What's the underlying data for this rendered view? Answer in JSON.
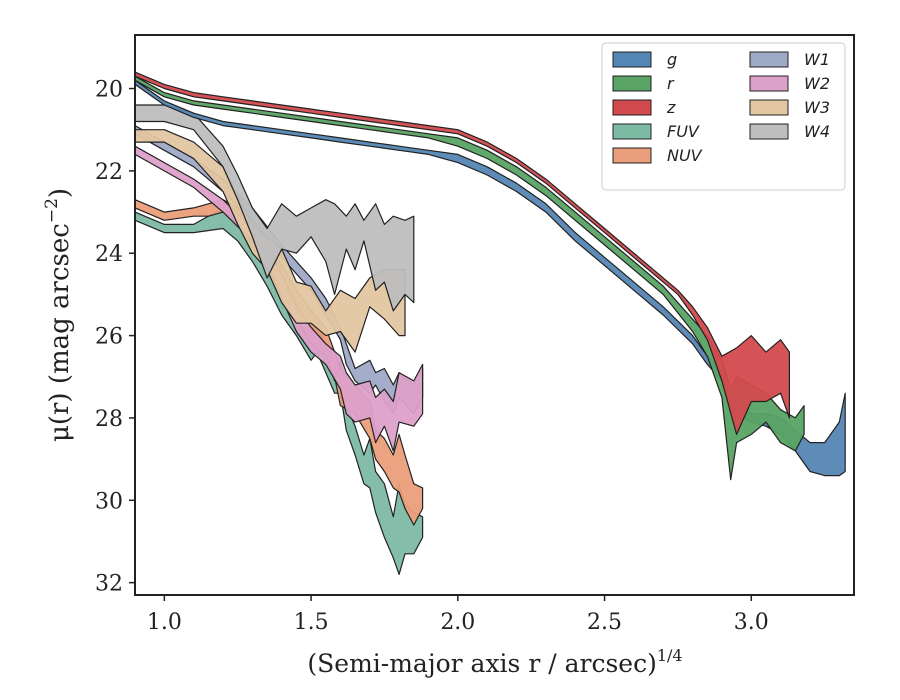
{
  "chart_data": {
    "type": "area",
    "xlabel": "(Semi-major axis r / arcsec)",
    "xlabel_var": "r",
    "xlabel_exponent": "1/4",
    "ylabel": "μ(r) (mag arcsec",
    "ylabel_var": "r",
    "ylabel_exponent": "−2",
    "xlim": [
      0.9,
      3.35
    ],
    "ylim": [
      32.3,
      18.7
    ],
    "y_inverted": true,
    "xticks": [
      1.0,
      1.5,
      2.0,
      2.5,
      3.0
    ],
    "xtick_labels": [
      "1.0",
      "1.5",
      "2.0",
      "2.5",
      "3.0"
    ],
    "yticks": [
      20,
      22,
      24,
      26,
      28,
      30,
      32
    ],
    "ytick_labels": [
      "20",
      "22",
      "24",
      "26",
      "28",
      "30",
      "32"
    ],
    "grid": false,
    "legend": {
      "location": "top-right",
      "columns": 2
    },
    "series": [
      {
        "name": "FUV",
        "color": "#7dbba5",
        "x": [
          0.9,
          1.0,
          1.1,
          1.2,
          1.25,
          1.3,
          1.35,
          1.4,
          1.45,
          1.5,
          1.52,
          1.55,
          1.58,
          1.6,
          1.62,
          1.65,
          1.68,
          1.7,
          1.72,
          1.75,
          1.78,
          1.8,
          1.82,
          1.85,
          1.88
        ],
        "lo": [
          23.0,
          23.3,
          23.3,
          22.9,
          23.3,
          23.7,
          24.3,
          24.9,
          25.5,
          26.0,
          25.6,
          26.3,
          27.1,
          26.6,
          27.7,
          28.2,
          28.9,
          28.5,
          29.3,
          29.6,
          30.4,
          29.6,
          30.1,
          30.3,
          30.4
        ],
        "hi": [
          23.2,
          23.5,
          23.5,
          23.4,
          23.7,
          24.2,
          24.8,
          25.5,
          26.0,
          26.6,
          26.4,
          26.9,
          27.4,
          27.4,
          28.3,
          28.9,
          29.6,
          29.7,
          30.3,
          30.9,
          31.4,
          31.8,
          31.3,
          31.3,
          30.9
        ]
      },
      {
        "name": "NUV",
        "color": "#eb9e7b",
        "x": [
          0.9,
          1.0,
          1.1,
          1.15,
          1.2,
          1.25,
          1.3,
          1.35,
          1.4,
          1.45,
          1.5,
          1.55,
          1.58,
          1.6,
          1.65,
          1.7,
          1.72,
          1.75,
          1.78,
          1.8,
          1.82,
          1.85,
          1.88
        ],
        "lo": [
          22.7,
          23.0,
          22.9,
          22.8,
          22.7,
          22.9,
          23.3,
          23.7,
          24.3,
          24.9,
          25.4,
          25.8,
          26.4,
          26.8,
          27.2,
          27.6,
          28.3,
          28.5,
          28.9,
          28.4,
          28.9,
          29.6,
          29.7
        ],
        "hi": [
          22.9,
          23.2,
          23.1,
          23.1,
          23.0,
          23.2,
          23.8,
          24.3,
          25.0,
          25.6,
          26.2,
          26.5,
          27.0,
          27.7,
          27.9,
          28.5,
          29.0,
          29.3,
          29.7,
          29.8,
          30.2,
          30.6,
          30.2
        ]
      },
      {
        "name": "W1",
        "color": "#9faac7",
        "x": [
          0.9,
          1.0,
          1.1,
          1.2,
          1.3,
          1.4,
          1.5,
          1.55,
          1.6,
          1.62,
          1.65,
          1.7,
          1.72,
          1.75,
          1.78,
          1.8,
          1.85,
          1.88
        ],
        "lo": [
          20.9,
          21.3,
          21.7,
          22.2,
          22.9,
          23.8,
          24.6,
          25.1,
          25.8,
          26.2,
          26.8,
          26.6,
          26.9,
          26.8,
          27.2,
          26.9,
          27.2,
          26.8
        ],
        "hi": [
          21.1,
          21.5,
          21.9,
          22.5,
          23.2,
          24.1,
          24.9,
          25.5,
          26.1,
          26.7,
          27.1,
          27.4,
          27.2,
          27.6,
          27.9,
          27.5,
          27.9,
          27.5
        ]
      },
      {
        "name": "W2",
        "color": "#dda0c9",
        "x": [
          0.9,
          1.0,
          1.1,
          1.2,
          1.3,
          1.35,
          1.4,
          1.45,
          1.5,
          1.55,
          1.6,
          1.62,
          1.65,
          1.7,
          1.72,
          1.75,
          1.78,
          1.8,
          1.85,
          1.88
        ],
        "lo": [
          21.4,
          21.8,
          22.2,
          22.7,
          23.4,
          23.8,
          24.5,
          25.3,
          25.8,
          26.2,
          26.5,
          26.9,
          27.2,
          27.1,
          27.5,
          27.3,
          27.6,
          26.9,
          27.1,
          26.7
        ],
        "hi": [
          21.6,
          22.0,
          22.4,
          23.0,
          23.7,
          24.2,
          25.1,
          25.9,
          26.4,
          26.7,
          27.3,
          27.9,
          28.1,
          28.0,
          28.6,
          28.2,
          28.8,
          28.1,
          28.2,
          27.9
        ]
      },
      {
        "name": "W3",
        "color": "#e3c6a2",
        "x": [
          0.9,
          1.0,
          1.1,
          1.2,
          1.25,
          1.3,
          1.35,
          1.4,
          1.45,
          1.5,
          1.55,
          1.6,
          1.65,
          1.7,
          1.75,
          1.8,
          1.82
        ],
        "lo": [
          21.0,
          21.0,
          21.3,
          21.9,
          22.6,
          23.3,
          23.6,
          23.9,
          24.7,
          24.8,
          25.4,
          24.9,
          25.1,
          24.6,
          24.4,
          24.4,
          24.4
        ],
        "hi": [
          21.3,
          21.3,
          21.7,
          22.5,
          23.3,
          24.0,
          24.4,
          25.2,
          25.7,
          25.7,
          26.0,
          25.9,
          26.4,
          25.3,
          25.6,
          26.0,
          26.0
        ]
      },
      {
        "name": "W4",
        "color": "#bebebe",
        "x": [
          0.9,
          1.0,
          1.1,
          1.2,
          1.25,
          1.3,
          1.35,
          1.4,
          1.45,
          1.5,
          1.55,
          1.58,
          1.62,
          1.65,
          1.68,
          1.72,
          1.75,
          1.78,
          1.82,
          1.85
        ],
        "lo": [
          20.4,
          20.4,
          20.6,
          21.4,
          22.1,
          22.9,
          23.4,
          22.8,
          23.1,
          22.9,
          22.7,
          22.8,
          23.1,
          22.8,
          23.2,
          22.8,
          23.3,
          23.1,
          23.2,
          23.1
        ],
        "hi": [
          20.8,
          20.8,
          21.0,
          21.9,
          22.7,
          23.6,
          24.6,
          23.9,
          24.0,
          23.6,
          24.2,
          25.0,
          23.9,
          24.4,
          23.7,
          24.9,
          24.7,
          25.4,
          25.0,
          25.2
        ]
      },
      {
        "name": "g",
        "color": "#5486b5",
        "x": [
          0.9,
          1.0,
          1.1,
          1.2,
          1.3,
          1.4,
          1.5,
          1.6,
          1.7,
          1.8,
          1.9,
          2.0,
          2.1,
          2.2,
          2.3,
          2.4,
          2.5,
          2.6,
          2.7,
          2.8,
          2.85,
          2.9,
          2.92,
          2.95,
          3.0,
          3.05,
          3.1,
          3.15,
          3.2,
          3.25,
          3.3,
          3.32
        ],
        "lo": [
          19.8,
          20.3,
          20.6,
          20.8,
          20.9,
          21.0,
          21.1,
          21.2,
          21.3,
          21.4,
          21.5,
          21.6,
          21.9,
          22.3,
          22.8,
          23.5,
          24.1,
          24.7,
          25.3,
          26.0,
          26.5,
          26.9,
          27.4,
          27.7,
          27.9,
          27.9,
          28.0,
          28.3,
          28.6,
          28.6,
          28.1,
          27.4
        ],
        "hi": [
          19.9,
          20.4,
          20.7,
          20.9,
          21.0,
          21.1,
          21.2,
          21.3,
          21.4,
          21.5,
          21.6,
          21.8,
          22.1,
          22.5,
          23.0,
          23.7,
          24.3,
          24.9,
          25.5,
          26.2,
          26.7,
          27.1,
          27.6,
          27.9,
          28.1,
          28.2,
          28.4,
          28.8,
          29.3,
          29.4,
          29.4,
          29.3
        ]
      },
      {
        "name": "r",
        "color": "#59a364",
        "x": [
          0.9,
          1.0,
          1.1,
          1.2,
          1.3,
          1.4,
          1.5,
          1.6,
          1.7,
          1.8,
          1.9,
          2.0,
          2.1,
          2.2,
          2.3,
          2.4,
          2.5,
          2.6,
          2.7,
          2.8,
          2.85,
          2.9,
          2.93,
          2.95,
          3.0,
          3.05,
          3.1,
          3.15,
          3.18
        ],
        "lo": [
          19.7,
          20.1,
          20.3,
          20.4,
          20.5,
          20.6,
          20.7,
          20.8,
          20.9,
          21.0,
          21.1,
          21.2,
          21.5,
          21.9,
          22.4,
          23.0,
          23.6,
          24.2,
          24.8,
          25.6,
          26.0,
          26.6,
          27.3,
          27.0,
          27.2,
          27.4,
          27.8,
          28.0,
          27.7
        ],
        "hi": [
          19.8,
          20.2,
          20.4,
          20.5,
          20.6,
          20.7,
          20.8,
          20.9,
          21.0,
          21.1,
          21.2,
          21.4,
          21.7,
          22.1,
          22.6,
          23.2,
          23.8,
          24.4,
          25.0,
          25.9,
          26.5,
          27.5,
          29.5,
          28.6,
          28.4,
          28.1,
          28.6,
          28.8,
          28.4
        ]
      },
      {
        "name": "z",
        "color": "#d34a4e",
        "x": [
          0.9,
          1.0,
          1.1,
          1.2,
          1.3,
          1.4,
          1.5,
          1.6,
          1.7,
          1.8,
          1.9,
          2.0,
          2.1,
          2.2,
          2.3,
          2.4,
          2.5,
          2.6,
          2.7,
          2.75,
          2.8,
          2.85,
          2.9,
          2.95,
          3.0,
          3.05,
          3.1,
          3.13
        ],
        "lo": [
          19.6,
          19.9,
          20.1,
          20.2,
          20.3,
          20.4,
          20.5,
          20.6,
          20.7,
          20.8,
          20.9,
          21.0,
          21.3,
          21.7,
          22.2,
          22.8,
          23.4,
          24.0,
          24.6,
          24.9,
          25.3,
          25.8,
          26.5,
          26.3,
          26.0,
          26.4,
          26.1,
          26.4
        ],
        "hi": [
          19.7,
          20.0,
          20.2,
          20.3,
          20.4,
          20.5,
          20.6,
          20.7,
          20.8,
          20.9,
          21.0,
          21.1,
          21.4,
          21.8,
          22.3,
          22.9,
          23.5,
          24.1,
          24.7,
          25.0,
          25.5,
          26.1,
          27.1,
          28.4,
          27.6,
          27.6,
          27.4,
          28.0
        ]
      }
    ],
    "legend_entries": [
      {
        "name": "g",
        "color": "#5486b5"
      },
      {
        "name": "r",
        "color": "#59a364"
      },
      {
        "name": "z",
        "color": "#d34a4e"
      },
      {
        "name": "FUV",
        "color": "#7dbba5"
      },
      {
        "name": "NUV",
        "color": "#eb9e7b"
      },
      {
        "name": "W1",
        "color": "#9faac7"
      },
      {
        "name": "W2",
        "color": "#dda0c9"
      },
      {
        "name": "W3",
        "color": "#e3c6a2"
      },
      {
        "name": "W4",
        "color": "#bebebe"
      }
    ]
  }
}
